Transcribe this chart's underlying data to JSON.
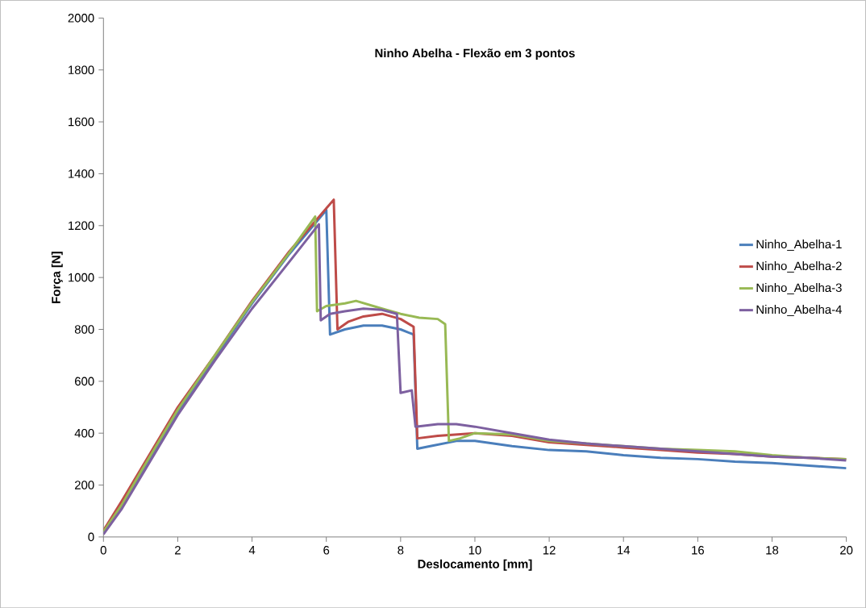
{
  "chart_data": {
    "type": "line",
    "title": "Ninho Abelha - Flexão em 3 pontos",
    "xlabel": "Deslocamento [mm]",
    "ylabel": "Força [N]",
    "xlim": [
      0,
      20
    ],
    "xticks": [
      0,
      2,
      4,
      6,
      8,
      10,
      12,
      14,
      16,
      18,
      20
    ],
    "ylim": [
      0,
      2000
    ],
    "yticks": [
      0,
      200,
      400,
      600,
      800,
      1000,
      1200,
      1400,
      1600,
      1800,
      2000
    ],
    "grid": false,
    "legend": "right",
    "marker": "none",
    "line_style": "solid",
    "series": [
      {
        "name": "Ninho_Abelha-1",
        "color": "#4a7ebb",
        "x": [
          0,
          0.5,
          1,
          2,
          3,
          4,
          5,
          6.0,
          6.1,
          6.5,
          7.0,
          7.5,
          8.0,
          8.35,
          8.45,
          8.8,
          9.5,
          10,
          11,
          12,
          13,
          14,
          15,
          16,
          17,
          18,
          19,
          20
        ],
        "values": [
          20,
          120,
          240,
          480,
          690,
          900,
          1090,
          1260,
          780,
          800,
          815,
          815,
          800,
          780,
          340,
          350,
          370,
          370,
          350,
          335,
          330,
          315,
          305,
          300,
          290,
          285,
          275,
          265
        ]
      },
      {
        "name": "Ninho_Abelha-2",
        "color": "#be4b48",
        "x": [
          0,
          0.5,
          1,
          2,
          3,
          4,
          5,
          6.2,
          6.3,
          6.6,
          7.0,
          7.5,
          8.0,
          8.35,
          8.45,
          9,
          10,
          11,
          12,
          13,
          14,
          15,
          16,
          17,
          18,
          19,
          20
        ],
        "values": [
          25,
          140,
          260,
          500,
          700,
          910,
          1100,
          1300,
          800,
          830,
          850,
          860,
          840,
          810,
          380,
          390,
          400,
          390,
          365,
          355,
          345,
          335,
          325,
          320,
          310,
          305,
          300
        ]
      },
      {
        "name": "Ninho_Abelha-3",
        "color": "#98b954",
        "x": [
          0,
          0.5,
          1,
          2,
          3,
          4,
          5,
          5.7,
          5.75,
          6.0,
          6.5,
          6.8,
          7.5,
          8.0,
          8.5,
          9.0,
          9.2,
          9.3,
          9.6,
          10,
          11,
          12,
          13,
          14,
          15,
          16,
          17,
          18,
          19,
          20
        ],
        "values": [
          20,
          125,
          250,
          490,
          700,
          905,
          1095,
          1235,
          870,
          890,
          900,
          910,
          880,
          860,
          845,
          840,
          820,
          370,
          380,
          400,
          395,
          370,
          360,
          350,
          340,
          335,
          330,
          315,
          305,
          300
        ]
      },
      {
        "name": "Ninho_Abelha-4",
        "color": "#7d60a0",
        "x": [
          0,
          0.5,
          1,
          2,
          3,
          4,
          5,
          5.8,
          5.85,
          6.1,
          6.5,
          7.0,
          7.5,
          7.9,
          8.0,
          8.3,
          8.4,
          9.0,
          9.5,
          10,
          11,
          12,
          13,
          14,
          15,
          16,
          17,
          18,
          19,
          20
        ],
        "values": [
          10,
          110,
          230,
          470,
          680,
          880,
          1060,
          1205,
          835,
          860,
          870,
          880,
          875,
          860,
          555,
          565,
          425,
          435,
          435,
          425,
          400,
          375,
          360,
          350,
          340,
          330,
          320,
          310,
          305,
          295
        ]
      }
    ]
  }
}
